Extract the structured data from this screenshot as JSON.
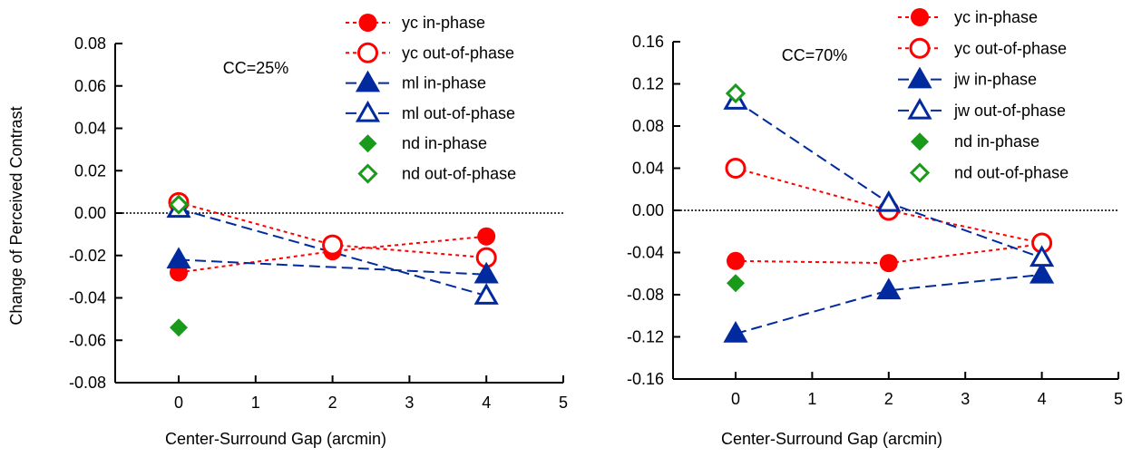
{
  "colors": {
    "red": "#ff0000",
    "blue": "#002a9e",
    "green": "#1a9a1a",
    "axis": "#000000"
  },
  "ylabel_shared": "Change of Perceived Contrast",
  "chart_data": [
    {
      "type": "line",
      "annotation": "CC=25%",
      "xlabel": "Center-Surround Gap (arcmin)",
      "ylabel": "Change of Perceived Contrast",
      "xlim": [
        -0.6,
        5
      ],
      "ylim": [
        -0.08,
        0.08
      ],
      "xticks": [
        0,
        1,
        2,
        3,
        4,
        5
      ],
      "yticks": [
        "0.08",
        "0.06",
        "0.04",
        "0.02",
        "0.00",
        "-0.02",
        "-0.04",
        "-0.06",
        "-0.08"
      ],
      "ytick_values": [
        0.08,
        0.06,
        0.04,
        0.02,
        0.0,
        -0.02,
        -0.04,
        -0.06,
        -0.08
      ],
      "zero_line": true,
      "legend_position": "top-right",
      "series": [
        {
          "name": "yc in-phase",
          "color": "#ff0000",
          "marker": "circle-filled",
          "dash": "dotted",
          "x": [
            0,
            2,
            4
          ],
          "y": [
            -0.028,
            -0.018,
            -0.011
          ]
        },
        {
          "name": "yc out-of-phase",
          "color": "#ff0000",
          "marker": "circle-open",
          "dash": "dotted",
          "x": [
            0,
            2,
            4
          ],
          "y": [
            0.005,
            -0.015,
            -0.021
          ]
        },
        {
          "name": "ml in-phase",
          "color": "#002a9e",
          "marker": "triangle-filled",
          "dash": "dashed",
          "x": [
            0,
            4
          ],
          "y": [
            -0.022,
            -0.029
          ]
        },
        {
          "name": "ml out-of-phase",
          "color": "#002a9e",
          "marker": "triangle-open",
          "dash": "dashed",
          "x": [
            0,
            4
          ],
          "y": [
            0.002,
            -0.039
          ]
        },
        {
          "name": "nd in-phase",
          "color": "#1a9a1a",
          "marker": "diamond-filled",
          "dash": "none",
          "x": [
            0
          ],
          "y": [
            -0.054
          ]
        },
        {
          "name": "nd out-of-phase",
          "color": "#1a9a1a",
          "marker": "diamond-open",
          "dash": "none",
          "x": [
            0
          ],
          "y": [
            0.004
          ]
        }
      ]
    },
    {
      "type": "line",
      "annotation": "CC=70%",
      "xlabel": "Center-Surround Gap (arcmin)",
      "ylabel": "",
      "xlim": [
        -0.6,
        5
      ],
      "ylim": [
        -0.16,
        0.16
      ],
      "xticks": [
        0,
        1,
        2,
        3,
        4,
        5
      ],
      "yticks": [
        "0.16",
        "0.12",
        "0.08",
        "0.04",
        "0.00",
        "-0.04",
        "-0.08",
        "-0.12",
        "-0.16"
      ],
      "ytick_values": [
        0.16,
        0.12,
        0.08,
        0.04,
        0.0,
        -0.04,
        -0.08,
        -0.12,
        -0.16
      ],
      "zero_line": true,
      "legend_position": "top-right",
      "series": [
        {
          "name": "yc in-phase",
          "color": "#ff0000",
          "marker": "circle-filled",
          "dash": "dotted",
          "x": [
            0,
            2,
            4
          ],
          "y": [
            -0.048,
            -0.05,
            -0.032
          ]
        },
        {
          "name": "yc out-of-phase",
          "color": "#ff0000",
          "marker": "circle-open",
          "dash": "dotted",
          "x": [
            0,
            2,
            4
          ],
          "y": [
            0.04,
            0.0,
            -0.031
          ]
        },
        {
          "name": "jw in-phase",
          "color": "#002a9e",
          "marker": "triangle-filled",
          "dash": "dashed",
          "x": [
            0,
            2,
            4
          ],
          "y": [
            -0.117,
            -0.076,
            -0.061
          ]
        },
        {
          "name": "jw out-of-phase",
          "color": "#002a9e",
          "marker": "triangle-open",
          "dash": "dashed",
          "x": [
            0,
            2,
            4
          ],
          "y": [
            0.104,
            0.007,
            -0.045
          ]
        },
        {
          "name": "nd in-phase",
          "color": "#1a9a1a",
          "marker": "diamond-filled",
          "dash": "none",
          "x": [
            0
          ],
          "y": [
            -0.069
          ]
        },
        {
          "name": "nd out-of-phase",
          "color": "#1a9a1a",
          "marker": "diamond-open",
          "dash": "none",
          "x": [
            0
          ],
          "y": [
            0.111
          ]
        }
      ]
    }
  ]
}
